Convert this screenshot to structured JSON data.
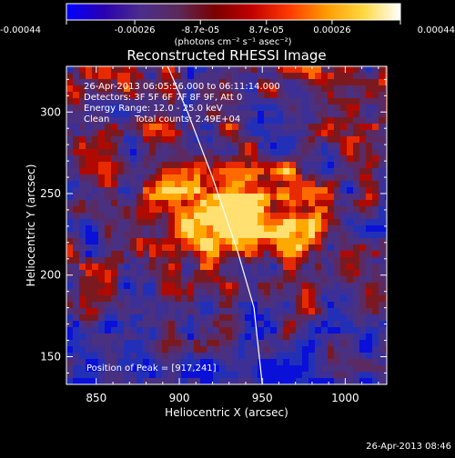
{
  "colorbar": {
    "ticks": [
      "-0.00044",
      "-0.00026",
      "-8.7e-05",
      "8.7e-05",
      "0.00026",
      "0.00044"
    ],
    "tick_values": [
      -0.00044,
      -0.00026,
      -8.7e-05,
      8.7e-05,
      0.00026,
      0.00044
    ],
    "range": [
      -0.00044,
      0.00044
    ],
    "units": "(photons cm⁻² s⁻¹ asec⁻²)",
    "colors": [
      "#0000ff",
      "#2a00b0",
      "#4b2d8c",
      "#5a2a5a",
      "#7a0000",
      "#c20000",
      "#ff3a00",
      "#ff9a00",
      "#ffd840",
      "#ffffff"
    ]
  },
  "chart_data": {
    "type": "heatmap",
    "title": "Reconstructed RHESSI Image",
    "xlabel": "Heliocentric X (arcsec)",
    "ylabel": "Heliocentric Y (arcsec)",
    "xlim": [
      832,
      1025
    ],
    "ylim": [
      133,
      328
    ],
    "x_ticks": [
      850,
      900,
      950,
      1000
    ],
    "y_ticks": [
      150,
      200,
      250,
      300
    ],
    "annotations": [
      "26-Apr-2013 06:05:56.000 to 06:11:14.000",
      "Detectors: 3F 5F 6F 7F 8F 9F, Att 0",
      "Energy Range: 12.0 - 25.0 keV",
      "Clean",
      "Total counts: 2.49E+04"
    ],
    "peak_label": "Position of Peak = [917,241]",
    "peak": [
      917,
      241
    ],
    "limb_curve": [
      [
        893,
        328
      ],
      [
        905,
        300
      ],
      [
        920,
        260
      ],
      [
        935,
        215
      ],
      [
        945,
        180
      ],
      [
        950,
        133
      ]
    ]
  },
  "footer_timestamp": "26-Apr-2013 08:46"
}
